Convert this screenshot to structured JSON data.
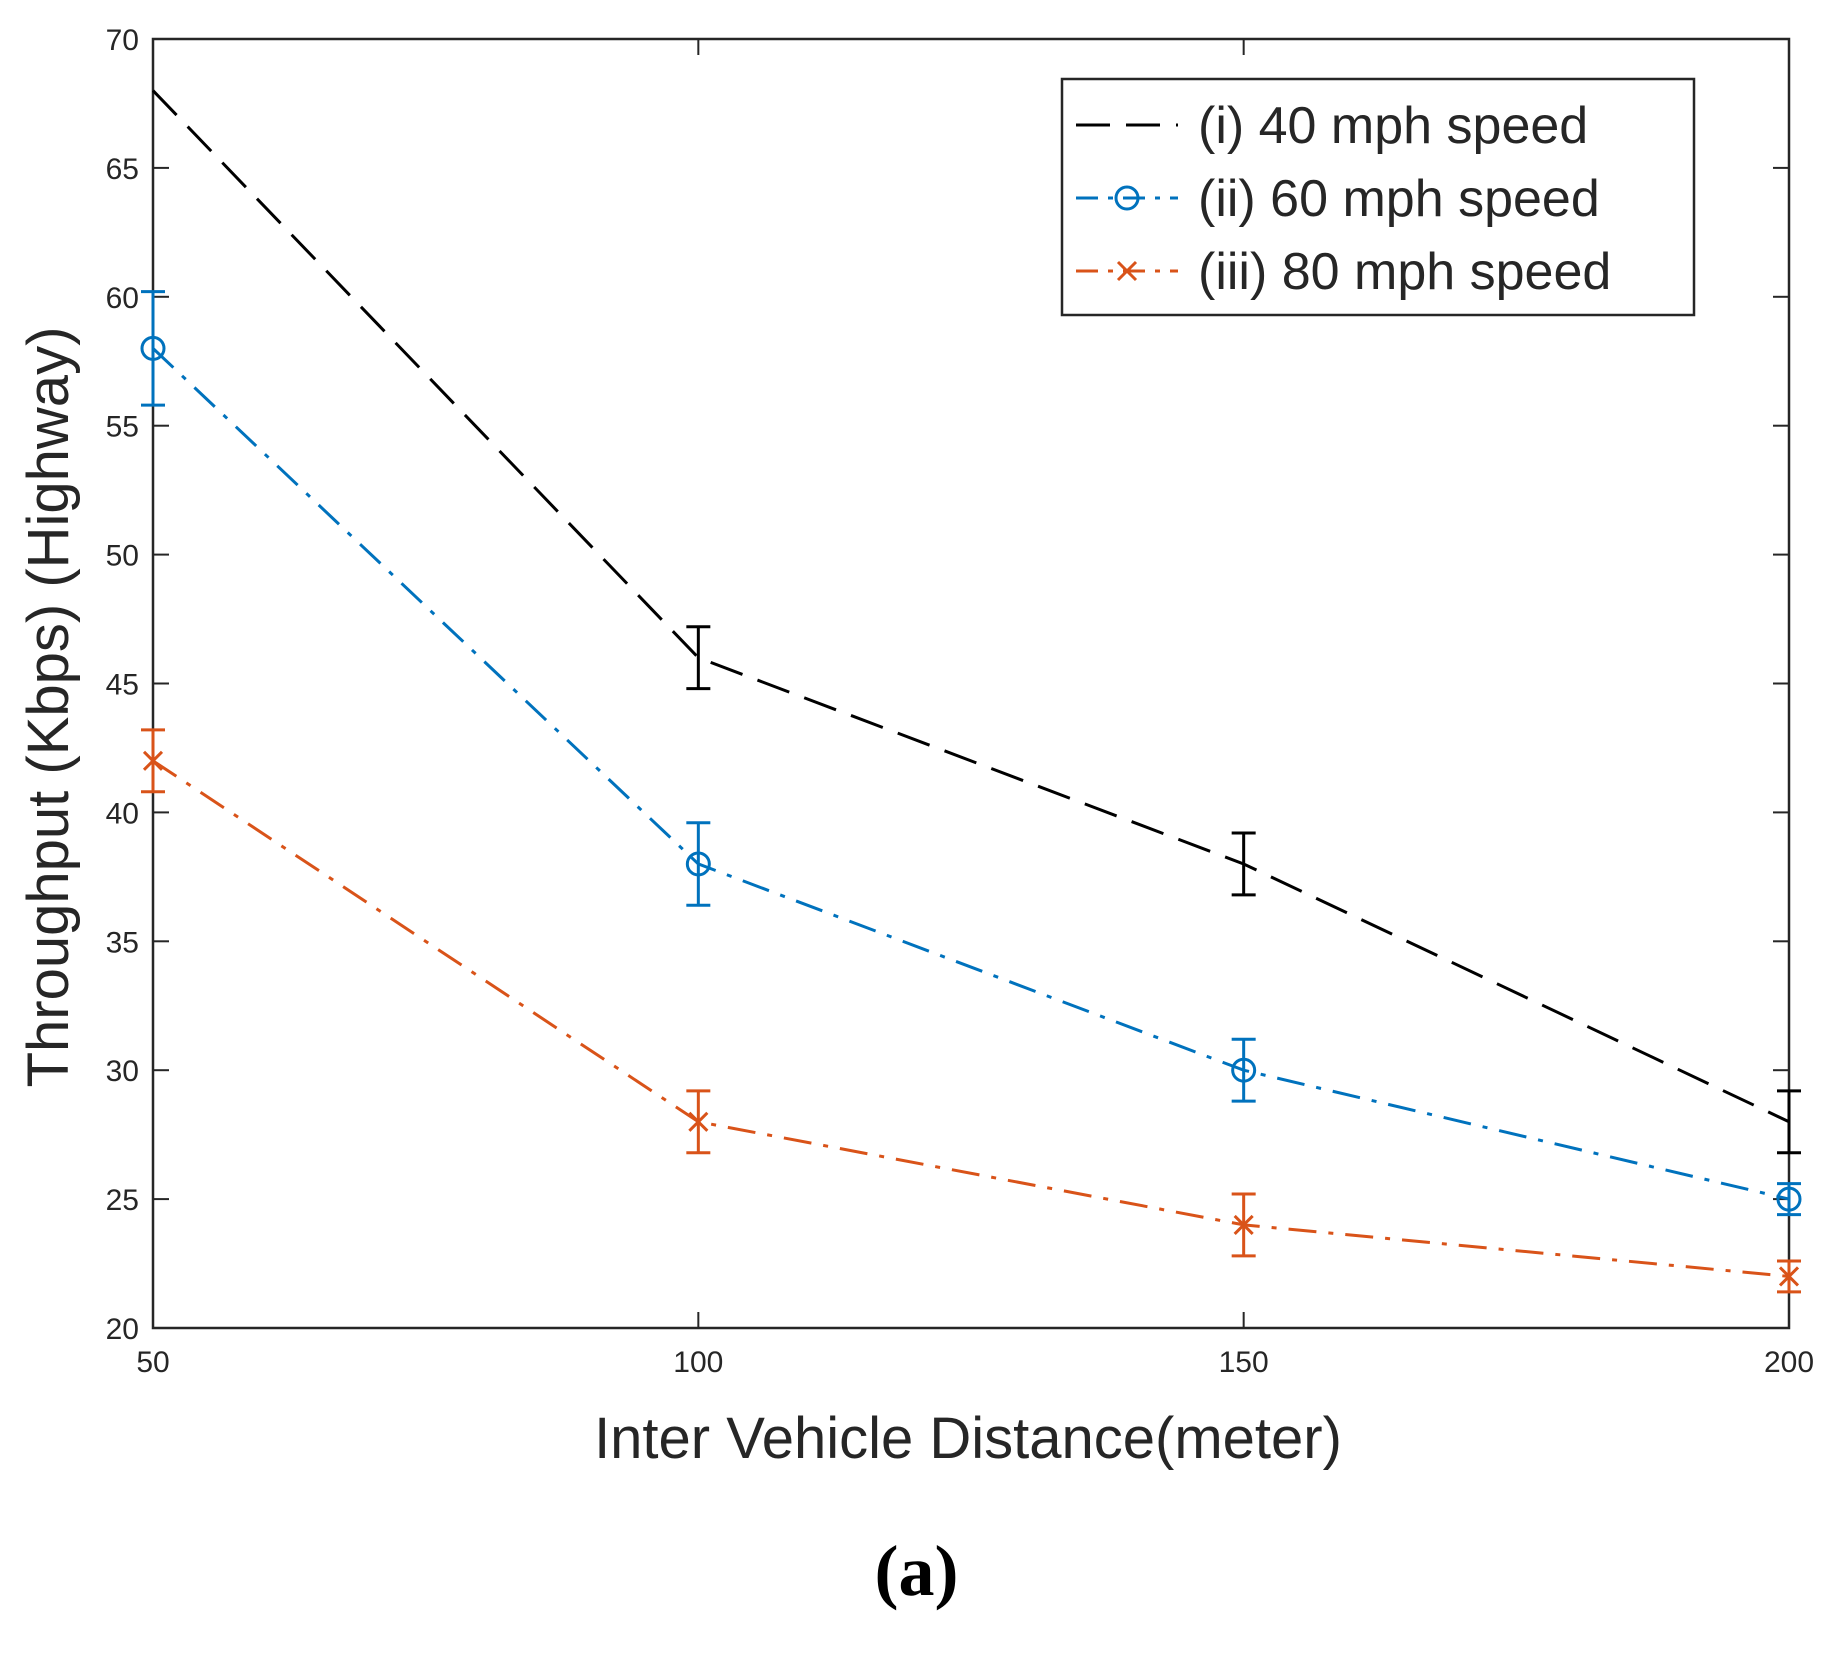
{
  "chart_data": {
    "type": "line",
    "title": "",
    "xlabel": "Inter Vehicle Distance(meter)",
    "ylabel": "Throughput (Kbps) (Highway)",
    "x": [
      50,
      100,
      150,
      200
    ],
    "xlim": [
      50,
      200
    ],
    "ylim": [
      20,
      70
    ],
    "xticks": [
      "50",
      "100",
      "150",
      "200"
    ],
    "yticks": [
      "20",
      "25",
      "30",
      "35",
      "40",
      "45",
      "50",
      "55",
      "60",
      "65",
      "70"
    ],
    "grid": false,
    "legend_position": "top-right",
    "series": [
      {
        "name": "(i) 40 mph speed",
        "color": "#000000",
        "line_style": "dashed",
        "marker": "none",
        "values": [
          68,
          46,
          38,
          28
        ],
        "error": [
          null,
          1.2,
          1.2,
          1.2
        ]
      },
      {
        "name": "(ii) 60 mph speed",
        "color": "#0072BD",
        "line_style": "dash-dot",
        "marker": "circle",
        "values": [
          58,
          38,
          30,
          25
        ],
        "error": [
          2.2,
          1.6,
          1.2,
          0.6
        ]
      },
      {
        "name": "(iii) 80 mph speed",
        "color": "#D95319",
        "line_style": "dash-dot",
        "marker": "x",
        "values": [
          42,
          28,
          24,
          22
        ],
        "error": [
          1.2,
          1.2,
          1.2,
          0.6
        ]
      }
    ]
  },
  "caption": "(a)"
}
